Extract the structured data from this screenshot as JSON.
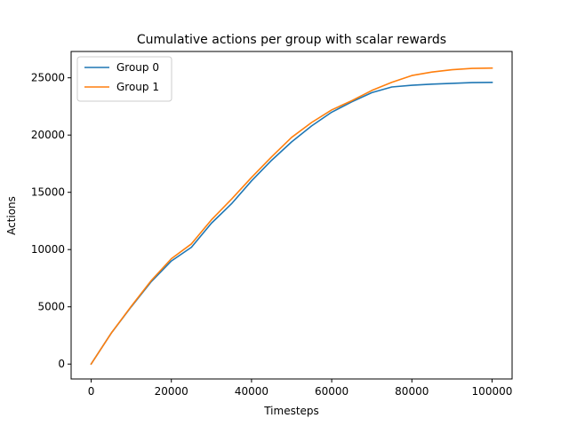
{
  "chart_data": {
    "type": "line",
    "title": "Cumulative actions per group with scalar rewards",
    "xlabel": "Timesteps",
    "ylabel": "Actions",
    "xlim": [
      -5000,
      105000
    ],
    "ylim": [
      -1300,
      27300
    ],
    "xticks": [
      0,
      20000,
      40000,
      60000,
      80000,
      100000
    ],
    "yticks": [
      0,
      5000,
      10000,
      15000,
      20000,
      25000
    ],
    "grid": false,
    "legend_position": "top-left",
    "series": [
      {
        "name": "Group 0",
        "color": "#1f77b4",
        "x": [
          0,
          5000,
          10000,
          15000,
          20000,
          25000,
          30000,
          35000,
          40000,
          45000,
          50000,
          55000,
          60000,
          65000,
          70000,
          75000,
          80000,
          85000,
          90000,
          95000,
          100000
        ],
        "y": [
          0,
          2700,
          5000,
          7200,
          9000,
          10200,
          12300,
          14000,
          16000,
          17800,
          19400,
          20800,
          22000,
          22900,
          23700,
          24200,
          24350,
          24450,
          24520,
          24580,
          24600
        ]
      },
      {
        "name": "Group 1",
        "color": "#ff7f0e",
        "x": [
          0,
          5000,
          10000,
          15000,
          20000,
          25000,
          30000,
          35000,
          40000,
          45000,
          50000,
          55000,
          60000,
          65000,
          70000,
          75000,
          80000,
          85000,
          90000,
          95000,
          100000
        ],
        "y": [
          0,
          2700,
          5050,
          7300,
          9200,
          10500,
          12600,
          14400,
          16300,
          18100,
          19800,
          21100,
          22200,
          23000,
          23900,
          24600,
          25200,
          25500,
          25700,
          25820,
          25850
        ]
      }
    ]
  }
}
